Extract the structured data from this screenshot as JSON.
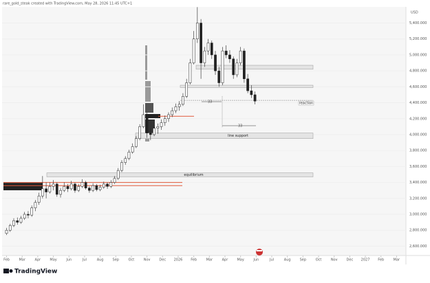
{
  "header": "rare_gold_steak created with TradingView.com, May 28, 2026 11:45 UTC+1",
  "footer": "TradingView",
  "chart_data": {
    "type": "candlestick",
    "currency": "USD",
    "up_color": "#ffffff",
    "down_color": "#222222",
    "wick_color": "#222222",
    "ylim": [
      2500,
      5620
    ],
    "yticks": [
      {
        "value": 2600,
        "label": "2,600.000"
      },
      {
        "value": 2800,
        "label": "2,800.000"
      },
      {
        "value": 3000,
        "label": "3,000.000"
      },
      {
        "value": 3200,
        "label": "3,200.000"
      },
      {
        "value": 3400,
        "label": "3,400.000"
      },
      {
        "value": 3600,
        "label": "3,600.000"
      },
      {
        "value": 3800,
        "label": "3,800.000"
      },
      {
        "value": 4000,
        "label": "4,000.000"
      },
      {
        "value": 4200,
        "label": "4,200.000"
      },
      {
        "value": 4400,
        "label": "4,400.000"
      },
      {
        "value": 4600,
        "label": "4,600.000"
      },
      {
        "value": 4800,
        "label": "4,800.000"
      },
      {
        "value": 5000,
        "label": "5,000.000"
      },
      {
        "value": 5200,
        "label": "5,200.000"
      },
      {
        "value": 5400,
        "label": "5,400.000"
      }
    ],
    "xlim": [
      -0.2,
      25.6
    ],
    "xticks": [
      {
        "value": 0,
        "label": "Feb"
      },
      {
        "value": 1,
        "label": "Mar"
      },
      {
        "value": 2,
        "label": "Apr"
      },
      {
        "value": 3,
        "label": "May"
      },
      {
        "value": 4,
        "label": "Jun"
      },
      {
        "value": 5,
        "label": "Jul"
      },
      {
        "value": 6,
        "label": "Aug"
      },
      {
        "value": 7,
        "label": "Sep"
      },
      {
        "value": 8,
        "label": "Oct"
      },
      {
        "value": 9,
        "label": "Nov"
      },
      {
        "value": 10,
        "label": "Dec"
      },
      {
        "value": 11,
        "label": "2026"
      },
      {
        "value": 12,
        "label": "Feb"
      },
      {
        "value": 13,
        "label": "Mar"
      },
      {
        "value": 14,
        "label": "Apr"
      },
      {
        "value": 15,
        "label": "May"
      },
      {
        "value": 16,
        "label": "Jun"
      },
      {
        "value": 17,
        "label": "Jul"
      },
      {
        "value": 18,
        "label": "Aug"
      },
      {
        "value": 19,
        "label": "Sep"
      },
      {
        "value": 20,
        "label": "Oct"
      },
      {
        "value": 21,
        "label": "Nov"
      },
      {
        "value": 22,
        "label": "Dec"
      },
      {
        "value": 23,
        "label": "2027"
      },
      {
        "value": 24,
        "label": "Feb"
      },
      {
        "value": 25,
        "label": "Mar"
      }
    ],
    "ohlc": [
      [
        2760,
        2830,
        2740,
        2800
      ],
      [
        2800,
        2880,
        2780,
        2860
      ],
      [
        2860,
        2950,
        2840,
        2920
      ],
      [
        2920,
        2960,
        2870,
        2900
      ],
      [
        2900,
        2980,
        2880,
        2950
      ],
      [
        2950,
        3030,
        2930,
        3000
      ],
      [
        3000,
        3040,
        2950,
        2990
      ],
      [
        2990,
        3110,
        2970,
        3080
      ],
      [
        3080,
        3180,
        3040,
        3150
      ],
      [
        3150,
        3270,
        3120,
        3230
      ],
      [
        3230,
        3480,
        3200,
        3320
      ],
      [
        3320,
        3400,
        3200,
        3280
      ],
      [
        3280,
        3400,
        3260,
        3350
      ],
      [
        3350,
        3430,
        3300,
        3380
      ],
      [
        3380,
        3400,
        3220,
        3250
      ],
      [
        3250,
        3330,
        3210,
        3300
      ],
      [
        3300,
        3400,
        3280,
        3350
      ],
      [
        3350,
        3380,
        3280,
        3320
      ],
      [
        3320,
        3420,
        3300,
        3380
      ],
      [
        3380,
        3400,
        3270,
        3300
      ],
      [
        3300,
        3380,
        3280,
        3350
      ],
      [
        3350,
        3440,
        3330,
        3400
      ],
      [
        3400,
        3420,
        3310,
        3330
      ],
      [
        3330,
        3350,
        3270,
        3300
      ],
      [
        3300,
        3390,
        3280,
        3360
      ],
      [
        3360,
        3380,
        3290,
        3310
      ],
      [
        3310,
        3370,
        3290,
        3340
      ],
      [
        3340,
        3410,
        3320,
        3380
      ],
      [
        3380,
        3400,
        3320,
        3350
      ],
      [
        3350,
        3430,
        3330,
        3400
      ],
      [
        3400,
        3480,
        3380,
        3450
      ],
      [
        3450,
        3580,
        3430,
        3550
      ],
      [
        3550,
        3680,
        3530,
        3650
      ],
      [
        3650,
        3730,
        3620,
        3700
      ],
      [
        3700,
        3810,
        3680,
        3780
      ],
      [
        3780,
        3890,
        3760,
        3850
      ],
      [
        3850,
        3980,
        3830,
        3950
      ],
      [
        3950,
        4130,
        3930,
        4100
      ],
      [
        4100,
        4380,
        4080,
        4250
      ],
      [
        4250,
        4280,
        3960,
        4020
      ],
      [
        4020,
        4080,
        3930,
        4000
      ],
      [
        4000,
        4110,
        3980,
        4080
      ],
      [
        4080,
        4140,
        4010,
        4100
      ],
      [
        4100,
        4190,
        4060,
        4150
      ],
      [
        4150,
        4240,
        4110,
        4200
      ],
      [
        4200,
        4280,
        4160,
        4250
      ],
      [
        4250,
        4340,
        4220,
        4300
      ],
      [
        4300,
        4390,
        4270,
        4350
      ],
      [
        4350,
        4420,
        4300,
        4380
      ],
      [
        4380,
        4520,
        4360,
        4480
      ],
      [
        4480,
        4700,
        4460,
        4650
      ],
      [
        4650,
        4950,
        4630,
        4900
      ],
      [
        4900,
        5300,
        4880,
        5200
      ],
      [
        5200,
        5600,
        5150,
        5400
      ],
      [
        5400,
        5450,
        4700,
        4900
      ],
      [
        4900,
        5100,
        4850,
        5050
      ],
      [
        5050,
        5200,
        5000,
        5150
      ],
      [
        5150,
        5180,
        4950,
        5000
      ],
      [
        5000,
        5050,
        4750,
        4800
      ],
      [
        4800,
        4850,
        4600,
        4650
      ],
      [
        4650,
        5100,
        4620,
        5050
      ],
      [
        5050,
        5120,
        4960,
        5000
      ],
      [
        5000,
        5060,
        4900,
        4950
      ],
      [
        4950,
        4980,
        4700,
        4750
      ],
      [
        4750,
        4950,
        4720,
        4900
      ],
      [
        4900,
        5100,
        4870,
        5050
      ],
      [
        5050,
        5080,
        4650,
        4700
      ],
      [
        4700,
        4760,
        4520,
        4550
      ],
      [
        4550,
        4620,
        4460,
        4500
      ],
      [
        4500,
        4540,
        4380,
        4420
      ]
    ],
    "zones": [
      {
        "from": 4820,
        "to": 4870
      },
      {
        "from": 4590,
        "to": 4620
      },
      {
        "label": "line support",
        "from": 3950,
        "to": 4020
      },
      {
        "label": "equilibrium",
        "from": 3470,
        "to": 3520
      }
    ],
    "reaction": {
      "label": "reaction",
      "value": 4430
    },
    "lines": [
      {
        "value": 3400,
        "color": "#e0593a"
      },
      {
        "value": 3360,
        "color": "#e0593a"
      },
      {
        "value": 4230,
        "color": "#e0593a"
      }
    ],
    "annotations": [
      "33",
      "33"
    ]
  }
}
